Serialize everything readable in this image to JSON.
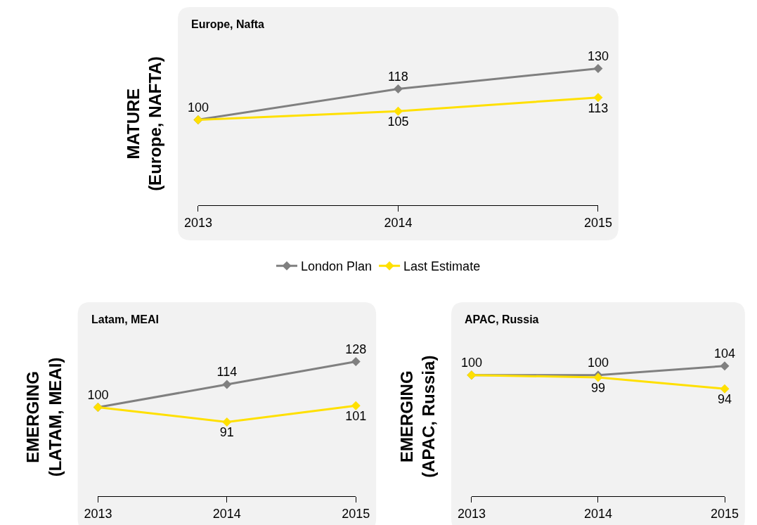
{
  "chart_data": [
    {
      "type": "line",
      "title": "Europe, Nafta",
      "ylabel": "MATURE\n(Europe, NAFTA)",
      "categories": [
        "2013",
        "2014",
        "2015"
      ],
      "tick_labels": "x",
      "legend": "bottom",
      "marker": "diamond",
      "grid": false,
      "series": [
        {
          "name": "London Plan",
          "color": "#808080",
          "values": [
            100,
            118,
            130
          ],
          "value_labels": [
            "100",
            "118",
            "130"
          ]
        },
        {
          "name": "Last Estimate",
          "color": "#ffe000",
          "values": [
            100,
            105,
            113
          ],
          "value_labels": [
            null,
            "105",
            "113"
          ]
        }
      ]
    },
    {
      "type": "line",
      "title": "Latam, MEAI",
      "ylabel": "EMERGING\n(LATAM, MEAI)",
      "categories": [
        "2013",
        "2014",
        "2015"
      ],
      "tick_labels": "x",
      "marker": "diamond",
      "grid": false,
      "series": [
        {
          "color": "#808080",
          "values": [
            100,
            114,
            128
          ],
          "value_labels": [
            "100",
            "114",
            "128"
          ]
        },
        {
          "color": "#ffe000",
          "values": [
            100,
            91,
            101
          ],
          "value_labels": [
            null,
            "91",
            "101"
          ]
        }
      ]
    },
    {
      "type": "line",
      "title": "APAC, Russia",
      "ylabel": "EMERGING\n(APAC, Russia)",
      "categories": [
        "2013",
        "2014",
        "2015"
      ],
      "tick_labels": "x",
      "marker": "diamond",
      "grid": false,
      "series": [
        {
          "color": "#808080",
          "values": [
            100,
            100,
            104
          ],
          "value_labels": [
            "100",
            "100",
            "104"
          ]
        },
        {
          "color": "#ffe000",
          "values": [
            100,
            99,
            94
          ],
          "value_labels": [
            null,
            "99",
            "94"
          ]
        }
      ]
    }
  ]
}
